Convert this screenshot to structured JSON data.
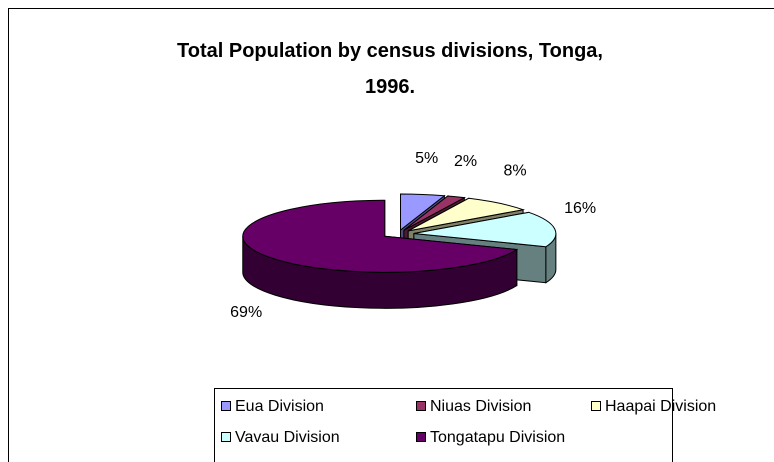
{
  "chart_data": {
    "type": "pie3d",
    "title": "Total Population by census divisions, Tonga, 1996.",
    "categories": [
      "Eua Division",
      "Niuas Division",
      "Haapai Division",
      "Vavau Division",
      "Tongatapu Division"
    ],
    "values": [
      5,
      2,
      8,
      16,
      69
    ],
    "value_labels": [
      "5%",
      "2%",
      "8%",
      "16%",
      "69%"
    ],
    "colors": [
      "#9999ff",
      "#993366",
      "#ffffcc",
      "#ccffff",
      "#660066"
    ],
    "legend": "bottom"
  }
}
